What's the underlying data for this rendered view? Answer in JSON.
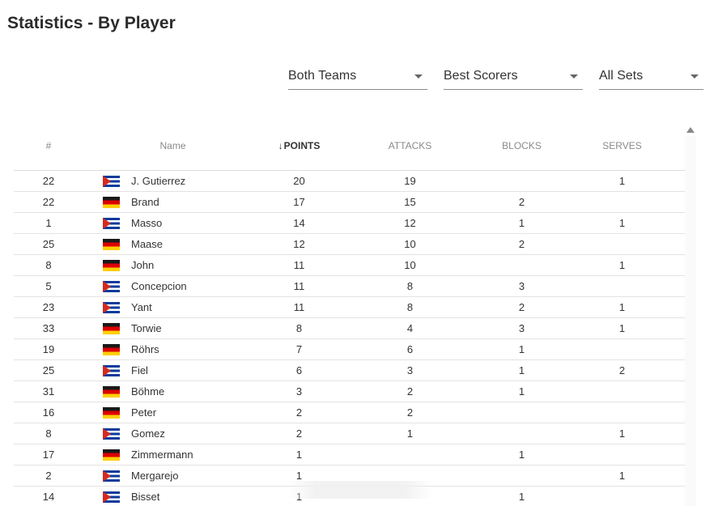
{
  "page": {
    "title": "Statistics - By Player"
  },
  "filters": {
    "team": "Both Teams",
    "metric": "Best Scorers",
    "sets": "All Sets"
  },
  "table": {
    "headers": {
      "number": "#",
      "name": "Name",
      "points": "POINTS",
      "attacks": "ATTACKS",
      "blocks": "BLOCKS",
      "serves": "SERVES"
    },
    "sort_arrow": "↓",
    "rows": [
      {
        "number": "22",
        "flag": "cub",
        "name": "J. Gutierrez",
        "points": "20",
        "attacks": "19",
        "blocks": "",
        "serves": "1"
      },
      {
        "number": "22",
        "flag": "deu",
        "name": "Brand",
        "points": "17",
        "attacks": "15",
        "blocks": "2",
        "serves": ""
      },
      {
        "number": "1",
        "flag": "cub",
        "name": "Masso",
        "points": "14",
        "attacks": "12",
        "blocks": "1",
        "serves": "1"
      },
      {
        "number": "25",
        "flag": "deu",
        "name": "Maase",
        "points": "12",
        "attacks": "10",
        "blocks": "2",
        "serves": ""
      },
      {
        "number": "8",
        "flag": "deu",
        "name": "John",
        "points": "11",
        "attacks": "10",
        "blocks": "",
        "serves": "1"
      },
      {
        "number": "5",
        "flag": "cub",
        "name": "Concepcion",
        "points": "11",
        "attacks": "8",
        "blocks": "3",
        "serves": ""
      },
      {
        "number": "23",
        "flag": "cub",
        "name": "Yant",
        "points": "11",
        "attacks": "8",
        "blocks": "2",
        "serves": "1"
      },
      {
        "number": "33",
        "flag": "deu",
        "name": "Torwie",
        "points": "8",
        "attacks": "4",
        "blocks": "3",
        "serves": "1"
      },
      {
        "number": "19",
        "flag": "deu",
        "name": "Röhrs",
        "points": "7",
        "attacks": "6",
        "blocks": "1",
        "serves": ""
      },
      {
        "number": "25",
        "flag": "cub",
        "name": "Fiel",
        "points": "6",
        "attacks": "3",
        "blocks": "1",
        "serves": "2"
      },
      {
        "number": "31",
        "flag": "deu",
        "name": "Böhme",
        "points": "3",
        "attacks": "2",
        "blocks": "1",
        "serves": ""
      },
      {
        "number": "16",
        "flag": "deu",
        "name": "Peter",
        "points": "2",
        "attacks": "2",
        "blocks": "",
        "serves": ""
      },
      {
        "number": "8",
        "flag": "cub",
        "name": "Gomez",
        "points": "2",
        "attacks": "1",
        "blocks": "",
        "serves": "1"
      },
      {
        "number": "17",
        "flag": "deu",
        "name": "Zimmermann",
        "points": "1",
        "attacks": "",
        "blocks": "1",
        "serves": ""
      },
      {
        "number": "2",
        "flag": "cub",
        "name": "Mergarejo",
        "points": "1",
        "attacks": "",
        "blocks": "",
        "serves": "1"
      },
      {
        "number": "14",
        "flag": "cub",
        "name": "Bisset",
        "points": "1",
        "attacks": "",
        "blocks": "1",
        "serves": ""
      }
    ]
  }
}
